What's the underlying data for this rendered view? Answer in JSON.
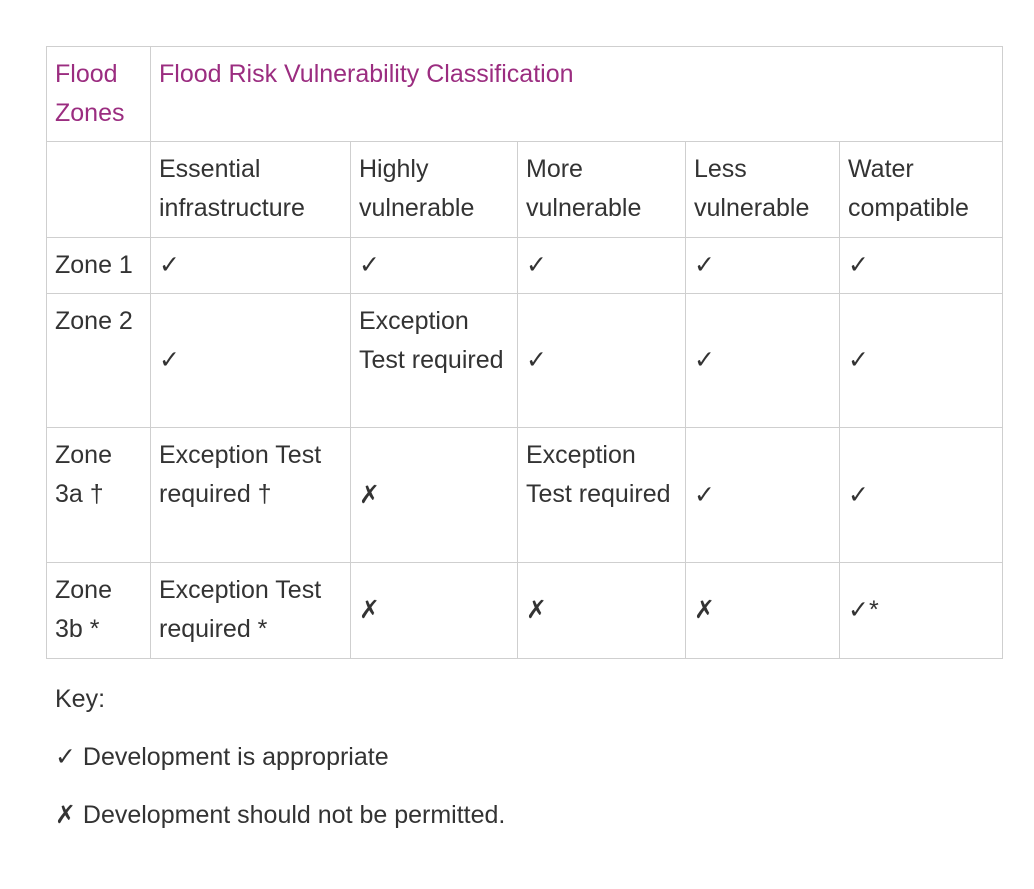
{
  "header": {
    "zones": "Flood Zones",
    "classification": "Flood Risk Vulnerability Classification"
  },
  "columns": [
    "Essential infrastructure",
    "Highly vulnerable",
    "More vulnerable",
    "Less vulnerable",
    "Water compatible"
  ],
  "rows": [
    {
      "zone": "Zone 1",
      "cells": [
        "✓",
        "✓",
        "✓",
        "✓",
        "✓"
      ]
    },
    {
      "zone": "Zone 2",
      "cells": [
        "✓",
        "Exception Test required",
        "✓",
        "✓",
        "✓"
      ]
    },
    {
      "zone": "Zone 3a †",
      "cells": [
        "Exception Test required †",
        "✗",
        "Exception Test required",
        "✓",
        "✓"
      ]
    },
    {
      "zone": "Zone 3b *",
      "cells": [
        "Exception Test required *",
        "✗",
        "✗",
        "✗",
        "✓*"
      ]
    }
  ],
  "key": {
    "title": "Key:",
    "items": [
      "✓ Development is appropriate",
      "✗ Development should not be permitted."
    ]
  }
}
